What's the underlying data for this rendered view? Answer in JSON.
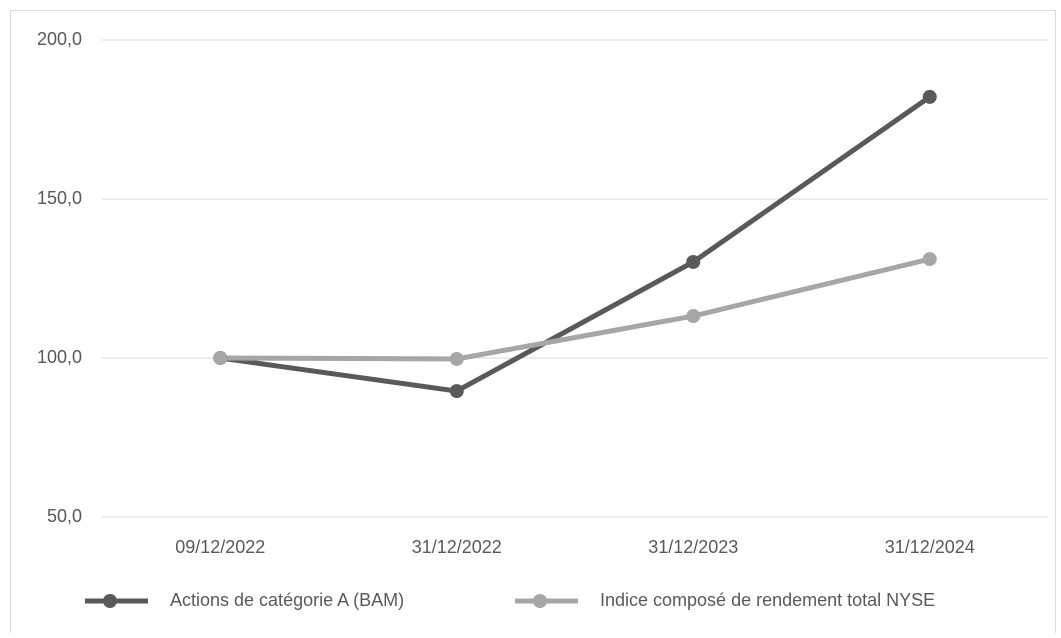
{
  "chart_data": {
    "type": "line",
    "categories": [
      "09/12/2022",
      "31/12/2022",
      "31/12/2023",
      "31/12/2024"
    ],
    "series": [
      {
        "name": "Actions de catégorie A (BAM)",
        "color": "#595959",
        "values": [
          100,
          89.6,
          130.2,
          182.1
        ]
      },
      {
        "name": "Indice composé de rendement total NYSE",
        "color": "#a6a6a6",
        "values": [
          100,
          99.7,
          113.2,
          131.1
        ]
      }
    ],
    "ylim": [
      50,
      200
    ],
    "yticks": [
      {
        "value": 50,
        "label": "50,0"
      },
      {
        "value": 100,
        "label": "100,0"
      },
      {
        "value": 150,
        "label": "150,0"
      },
      {
        "value": 200,
        "label": "200,0"
      }
    ],
    "grid": true,
    "legend": "bottom"
  }
}
